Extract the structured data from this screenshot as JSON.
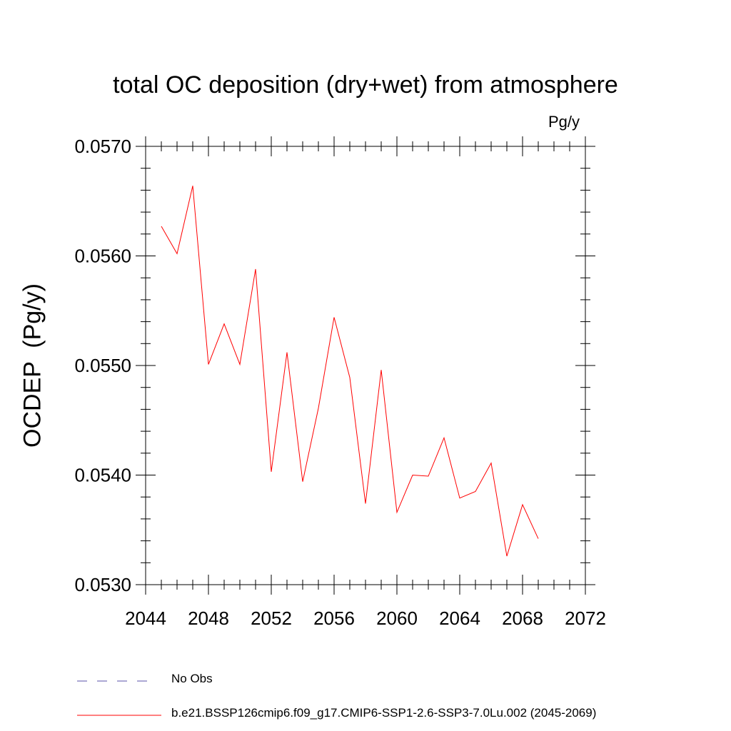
{
  "chart_data": {
    "type": "line",
    "title": "total OC deposition (dry+wet) from atmosphere",
    "units_label": "Pg/y",
    "ylabel": "OCDEP  (Pg/y)",
    "xlabel": "",
    "xlim": [
      2044,
      2072
    ],
    "ylim": [
      0.053,
      0.057
    ],
    "x_ticks": [
      2044,
      2048,
      2052,
      2056,
      2060,
      2064,
      2068,
      2072
    ],
    "x_tick_labels": [
      "2044",
      "2048",
      "2052",
      "2056",
      "2060",
      "2064",
      "2068",
      "2072"
    ],
    "y_ticks": [
      0.053,
      0.054,
      0.055,
      0.056,
      0.057
    ],
    "y_tick_labels": [
      "0.0530",
      "0.0540",
      "0.0550",
      "0.0560",
      "0.0570"
    ],
    "grid": false,
    "legend_placement": "bottom",
    "series": [
      {
        "name": "b.e21.BSSP126cmip6.f09_g17.CMIP6-SSP1-2.6-SSP3-7.0Lu.002 (2045-2069)",
        "color": "#ff0000",
        "style": "solid",
        "x": [
          2045,
          2046,
          2047,
          2048,
          2049,
          2050,
          2051,
          2052,
          2053,
          2054,
          2055,
          2056,
          2057,
          2058,
          2059,
          2060,
          2061,
          2062,
          2063,
          2064,
          2065,
          2066,
          2067,
          2068,
          2069
        ],
        "y": [
          0.05627,
          0.05602,
          0.05664,
          0.05501,
          0.05538,
          0.05501,
          0.05588,
          0.05403,
          0.05512,
          0.05394,
          0.05461,
          0.05544,
          0.05489,
          0.05374,
          0.05496,
          0.05366,
          0.054,
          0.05399,
          0.05434,
          0.05379,
          0.05385,
          0.05411,
          0.05326,
          0.05373,
          0.05342
        ]
      }
    ],
    "legend": [
      {
        "label": "No Obs",
        "color": "#5a50a8",
        "style": "dashed"
      },
      {
        "label": "b.e21.BSSP126cmip6.f09_g17.CMIP6-SSP1-2.6-SSP3-7.0Lu.002 (2045-2069)",
        "color": "#ff0000",
        "style": "solid"
      }
    ]
  }
}
